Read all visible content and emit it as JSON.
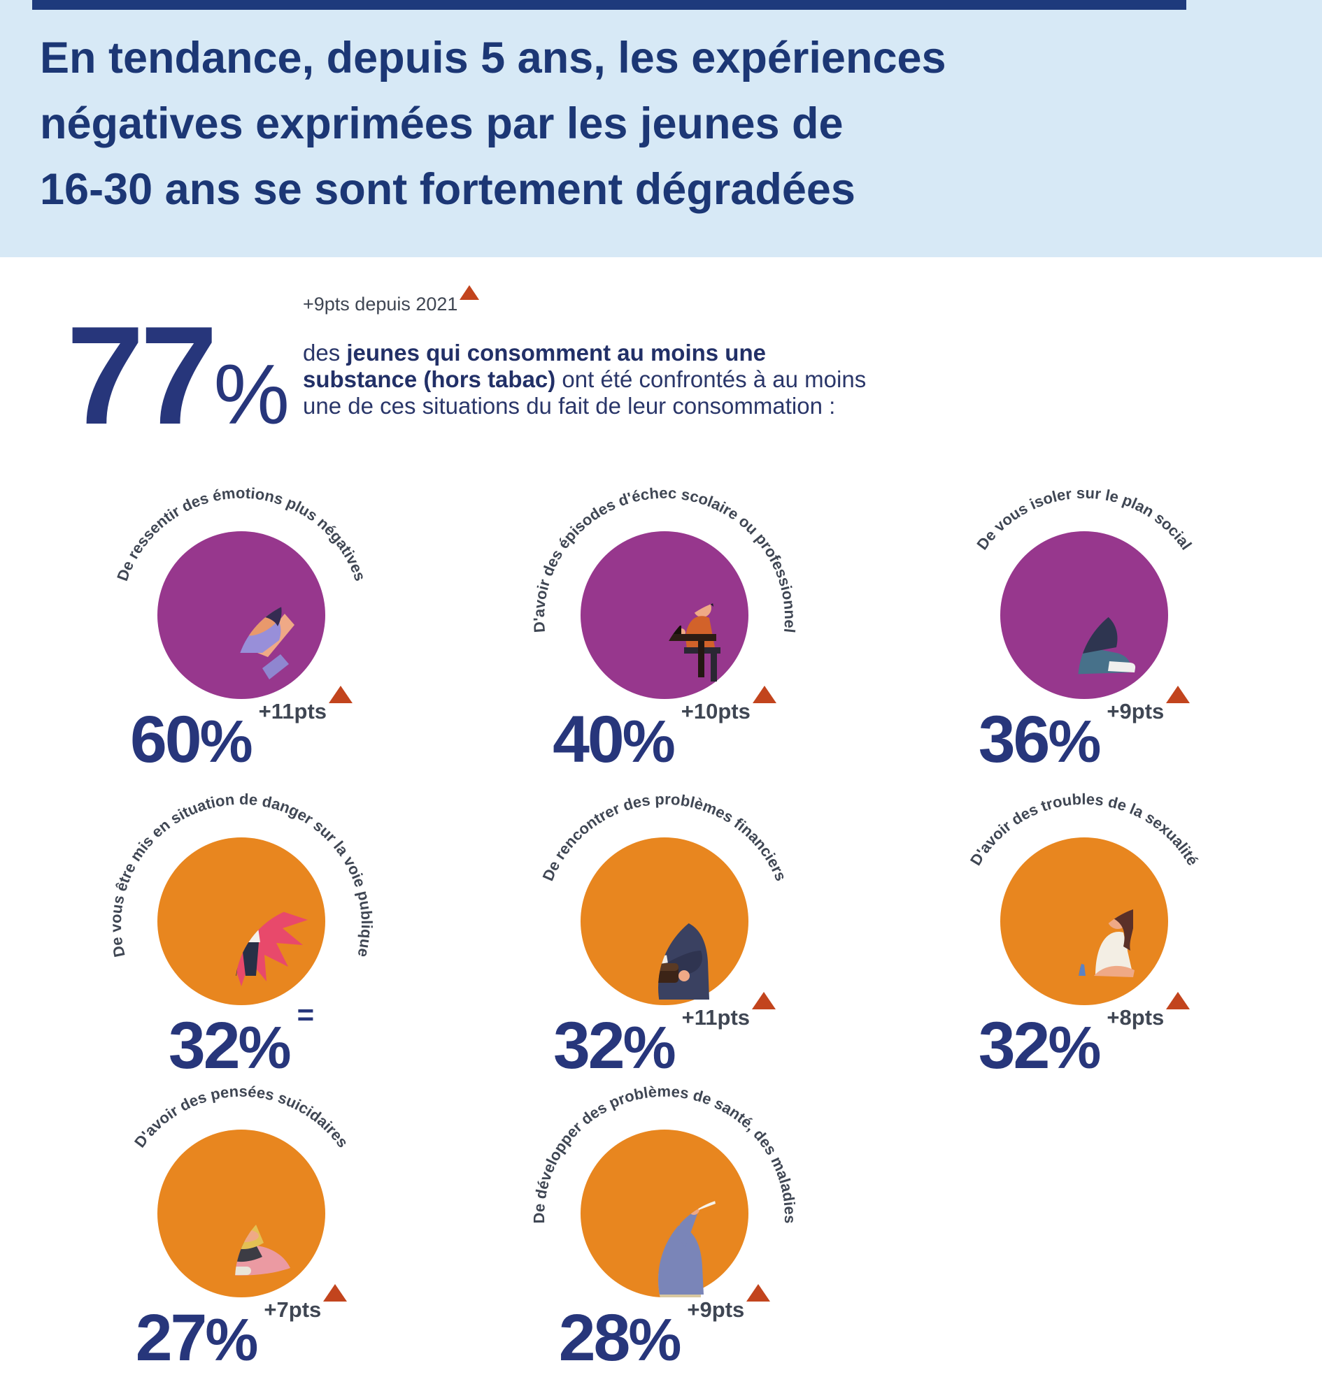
{
  "header": {
    "line1": "En tendance, depuis 5 ans, les expériences",
    "line2": "négatives exprimées par les jeunes de",
    "line3": "16-30 ans se sont fortement dégradées"
  },
  "headline_stat": {
    "value": "77",
    "unit": "%",
    "delta_label": "+9pts depuis 2021",
    "description_lines": [
      {
        "pre": "des ",
        "bold": "jeunes qui consomment au moins une",
        "post": ""
      },
      {
        "pre": "",
        "bold": "substance (hors tabac)",
        "post": " ont été confrontés à au moins"
      },
      {
        "pre": "une de ces situations du fait de leur consommation :",
        "bold": "",
        "post": ""
      }
    ]
  },
  "items": [
    {
      "label": "De ressentir des émotions plus négatives",
      "value": "60",
      "unit": "%",
      "delta": "+11pts",
      "trend": "up",
      "theme": "purple",
      "icon": "sad-girl"
    },
    {
      "label": "D'avoir des épisodes d'échec scolaire ou professionnel",
      "value": "40",
      "unit": "%",
      "delta": "+10pts",
      "trend": "up",
      "theme": "purple",
      "icon": "school-failure"
    },
    {
      "label": "De vous isoler sur le plan social",
      "value": "36",
      "unit": "%",
      "delta": "+9pts",
      "trend": "up",
      "theme": "purple",
      "icon": "social-isolation"
    },
    {
      "label": "De vous être mis en situation de danger sur la voie publique",
      "value": "32",
      "unit": "%",
      "delta": "=",
      "trend": "equal",
      "theme": "orange",
      "icon": "public-danger"
    },
    {
      "label": "De rencontrer des problèmes financiers",
      "value": "32",
      "unit": "%",
      "delta": "+11pts",
      "trend": "up",
      "theme": "orange",
      "icon": "financial-problems"
    },
    {
      "label": "D'avoir des troubles de la sexualité",
      "value": "32",
      "unit": "%",
      "delta": "+8pts",
      "trend": "up",
      "theme": "orange",
      "icon": "sexuality-troubles"
    },
    {
      "label": "D'avoir des pensées suicidaires",
      "value": "27",
      "unit": "%",
      "delta": "+7pts",
      "trend": "up",
      "theme": "orange",
      "icon": "suicidal-thoughts"
    },
    {
      "label": "De développer des problèmes de santé, des maladies",
      "value": "28",
      "unit": "%",
      "delta": "+9pts",
      "trend": "up",
      "theme": "orange",
      "icon": "health-problems"
    }
  ],
  "colors": {
    "navy": "#27367b",
    "header_background": "#d7e9f6",
    "purple_circle": "#97378d",
    "orange_circle": "#e8861f",
    "starburst_pink": "#e8496b",
    "triangle_red": "#c2441d",
    "delta_text": "#3f4653"
  },
  "chart_data": {
    "type": "table",
    "title": "En tendance, depuis 5 ans, les expériences négatives exprimées par les jeunes de 16-30 ans se sont fortement dégradées",
    "headline": {
      "value": 77,
      "unit": "%",
      "delta": "+9pts depuis 2021",
      "description": "des jeunes qui consomment au moins une substance (hors tabac) ont été confrontés à au moins une de ces situations du fait de leur consommation :"
    },
    "categories": [
      "De ressentir des émotions plus négatives",
      "D'avoir des épisodes d'échec scolaire ou professionnel",
      "De vous isoler sur le plan social",
      "De vous être mis en situation de danger sur la voie publique",
      "De rencontrer des problèmes financiers",
      "D'avoir des troubles de la sexualité",
      "D'avoir des pensées suicidaires",
      "De développer des problèmes de santé, des maladies"
    ],
    "values": [
      60,
      40,
      36,
      32,
      32,
      32,
      27,
      28
    ],
    "deltas": [
      "+11pts",
      "+10pts",
      "+9pts",
      "=",
      "+11pts",
      "+8pts",
      "+7pts",
      "+9pts"
    ],
    "legend_position": "none",
    "grid": false
  }
}
